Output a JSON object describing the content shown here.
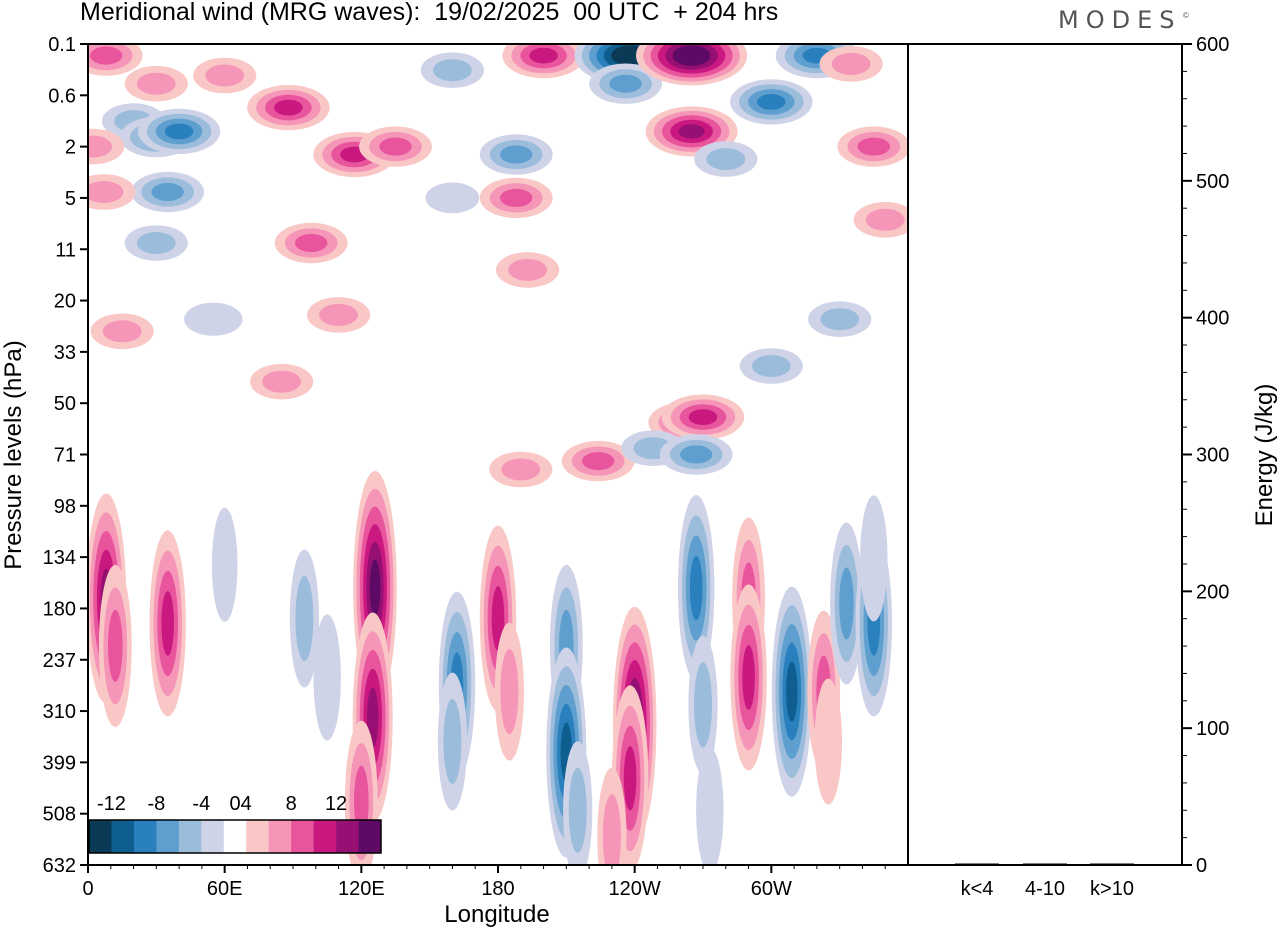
{
  "header": {
    "title": "Meridional wind (MRG waves):  19/02/2025  00 UTC  + 204 hrs",
    "logo": "MODES",
    "logo_mark": "©"
  },
  "chart_data": [
    {
      "type": "heatmap",
      "title": "Meridional wind (MRG waves):  19/02/2025  00 UTC  + 204 hrs",
      "xlabel": "Longitude",
      "ylabel": "Pressure levels (hPa)",
      "x_ticks": [
        "0",
        "60E",
        "120E",
        "180",
        "120W",
        "60W"
      ],
      "x_tick_values": [
        0,
        60,
        120,
        180,
        240,
        300
      ],
      "xlim": [
        0,
        360
      ],
      "y_ticks": [
        "0.1",
        "0.6",
        "2",
        "5",
        "11",
        "20",
        "33",
        "50",
        "71",
        "98",
        "134",
        "180",
        "237",
        "310",
        "399",
        "508",
        "632"
      ],
      "y_scale": "pressure levels (equally spaced model levels, top = 0.1 hPa)",
      "colorbar": {
        "label_values": [
          "-12",
          "-8",
          "-4",
          "0",
          "4",
          "8",
          "12"
        ],
        "levels": [
          -14,
          -12,
          -10,
          -8,
          -6,
          -4,
          -2,
          2,
          4,
          6,
          8,
          10,
          12,
          14
        ],
        "colors": [
          "#0a3a55",
          "#0e5f8f",
          "#2a80bd",
          "#5e9fcf",
          "#9cbcdc",
          "#cfd3e8",
          "#ffffff",
          "#f9c7c5",
          "#f595b8",
          "#e8559c",
          "#c91880",
          "#951072",
          "#5c0a66"
        ],
        "placement": "bottom-left"
      },
      "blobs": [
        {
          "lon": 8,
          "p": 0.15,
          "v": 6
        },
        {
          "lon": 30,
          "p": 0.4,
          "v": 4
        },
        {
          "lon": 20,
          "p": 1.1,
          "v": -4
        },
        {
          "lon": 30,
          "p": 1.6,
          "v": -6
        },
        {
          "lon": 40,
          "p": 1.4,
          "v": -8
        },
        {
          "lon": 35,
          "p": 4.5,
          "v": -6
        },
        {
          "lon": 7,
          "p": 4.5,
          "v": 4
        },
        {
          "lon": 2,
          "p": 2,
          "v": 4
        },
        {
          "lon": 30,
          "p": 10,
          "v": -4
        },
        {
          "lon": 60,
          "p": 0.3,
          "v": 4
        },
        {
          "lon": 88,
          "p": 0.8,
          "v": 8
        },
        {
          "lon": 98,
          "p": 10,
          "v": 6
        },
        {
          "lon": 117,
          "p": 2.3,
          "v": 8
        },
        {
          "lon": 135,
          "p": 2,
          "v": 6
        },
        {
          "lon": 160,
          "p": 0.25,
          "v": -4
        },
        {
          "lon": 160,
          "p": 5,
          "v": -2
        },
        {
          "lon": 188,
          "p": 5,
          "v": 6
        },
        {
          "lon": 188,
          "p": 2.3,
          "v": -6
        },
        {
          "lon": 200,
          "p": 0.15,
          "v": 8
        },
        {
          "lon": 238,
          "p": 0.15,
          "v": -14
        },
        {
          "lon": 236,
          "p": 0.4,
          "v": -6
        },
        {
          "lon": 265,
          "p": 1.4,
          "v": 10
        },
        {
          "lon": 265,
          "p": 0.15,
          "v": 14
        },
        {
          "lon": 280,
          "p": 2.5,
          "v": -4
        },
        {
          "lon": 300,
          "p": 0.7,
          "v": -8
        },
        {
          "lon": 320,
          "p": 0.15,
          "v": -8
        },
        {
          "lon": 345,
          "p": 2,
          "v": 6
        },
        {
          "lon": 335,
          "p": 0.2,
          "v": 4
        },
        {
          "lon": 350,
          "p": 7,
          "v": 4
        },
        {
          "lon": 193,
          "p": 14,
          "v": 4
        },
        {
          "lon": 55,
          "p": 24,
          "v": -3
        },
        {
          "lon": 110,
          "p": 23,
          "v": 4
        },
        {
          "lon": 15,
          "p": 27,
          "v": 4
        },
        {
          "lon": 300,
          "p": 37,
          "v": -4
        },
        {
          "lon": 330,
          "p": 24,
          "v": -4
        },
        {
          "lon": 85,
          "p": 42,
          "v": 4
        },
        {
          "lon": 190,
          "p": 78,
          "v": 4
        },
        {
          "lon": 224,
          "p": 74,
          "v": 6
        },
        {
          "lon": 262,
          "p": 57,
          "v": 6
        },
        {
          "lon": 270,
          "p": 55,
          "v": 8
        },
        {
          "lon": 248,
          "p": 68,
          "v": -4
        },
        {
          "lon": 267,
          "p": 71,
          "v": -6
        },
        {
          "lon": 8,
          "p": 170,
          "v": 10
        },
        {
          "lon": 12,
          "p": 220,
          "v": 6
        },
        {
          "lon": 35,
          "p": 195,
          "v": 8
        },
        {
          "lon": 60,
          "p": 140,
          "v": -2
        },
        {
          "lon": 95,
          "p": 190,
          "v": -4
        },
        {
          "lon": 105,
          "p": 260,
          "v": -3
        },
        {
          "lon": 126,
          "p": 160,
          "v": 12
        },
        {
          "lon": 125,
          "p": 320,
          "v": 10
        },
        {
          "lon": 120,
          "p": 480,
          "v": 6
        },
        {
          "lon": 162,
          "p": 270,
          "v": -8
        },
        {
          "lon": 160,
          "p": 360,
          "v": -4
        },
        {
          "lon": 180,
          "p": 190,
          "v": 8
        },
        {
          "lon": 185,
          "p": 280,
          "v": 4
        },
        {
          "lon": 210,
          "p": 220,
          "v": -6
        },
        {
          "lon": 210,
          "p": 380,
          "v": -10
        },
        {
          "lon": 215,
          "p": 500,
          "v": -4
        },
        {
          "lon": 240,
          "p": 330,
          "v": 12
        },
        {
          "lon": 238,
          "p": 430,
          "v": 8
        },
        {
          "lon": 230,
          "p": 560,
          "v": 4
        },
        {
          "lon": 267,
          "p": 160,
          "v": -8
        },
        {
          "lon": 270,
          "p": 300,
          "v": -4
        },
        {
          "lon": 273,
          "p": 500,
          "v": -3
        },
        {
          "lon": 290,
          "p": 170,
          "v": 6
        },
        {
          "lon": 290,
          "p": 260,
          "v": 8
        },
        {
          "lon": 309,
          "p": 280,
          "v": -10
        },
        {
          "lon": 323,
          "p": 280,
          "v": 6
        },
        {
          "lon": 333,
          "p": 175,
          "v": -6
        },
        {
          "lon": 345,
          "p": 195,
          "v": -8
        },
        {
          "lon": 345,
          "p": 135,
          "v": -3
        },
        {
          "lon": 325,
          "p": 360,
          "v": 3
        }
      ]
    },
    {
      "type": "bar",
      "categories": [
        "k<4",
        "4-10",
        "k>10"
      ],
      "values": [
        0,
        1,
        0
      ],
      "ylabel": "Energy (J/kg)",
      "ylim": [
        0,
        600
      ],
      "y_ticks": [
        "0",
        "100",
        "200",
        "300",
        "400",
        "500",
        "600"
      ]
    }
  ]
}
